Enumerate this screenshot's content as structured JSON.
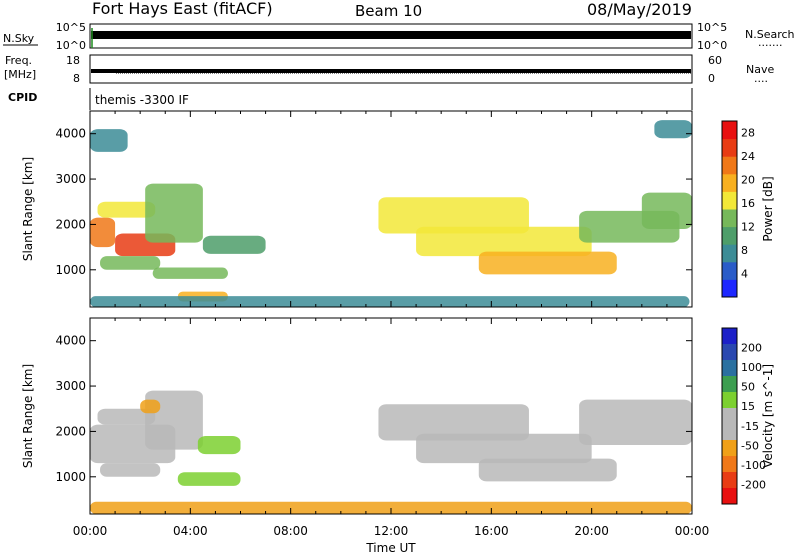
{
  "header": {
    "radar_name": "Fort Hays East (fitACF)",
    "beam": "Beam 10",
    "date": "08/May/2019"
  },
  "status_panels": {
    "nsky": {
      "left_label": "N.Sky",
      "left_ticks": [
        "10^5",
        "10^0"
      ],
      "right_label": "N.Search",
      "right_ticks": [
        "10^5",
        "10^0"
      ]
    },
    "freq": {
      "left_label_line1": "Freq.",
      "left_label_line2": "[MHz]",
      "left_ticks": [
        "18",
        "8"
      ],
      "right_label": "Nave",
      "right_ticks": [
        "60",
        "0"
      ]
    },
    "cpid": {
      "left_label": "CPID",
      "program": "themis -3300 IF"
    }
  },
  "time_axis": {
    "label": "Time UT",
    "ticks": [
      "00:00",
      "04:00",
      "08:00",
      "12:00",
      "16:00",
      "20:00",
      "00:00"
    ]
  },
  "colors": {
    "power_scale": [
      "#1e28ff",
      "#2a5cc8",
      "#3c8c96",
      "#4e9e6a",
      "#76b85a",
      "#f2e838",
      "#f8b020",
      "#f07818",
      "#e83c14",
      "#e81010"
    ],
    "velocity_scale": [
      "#1c20c8",
      "#2a48b0",
      "#2a70a0",
      "#3c9e50",
      "#7cd030",
      "#b8b8b8",
      "#b8b8b8",
      "#f0a018",
      "#f07818",
      "#e83c14",
      "#e81010"
    ]
  },
  "chart_data": [
    {
      "type": "heatmap",
      "name": "power",
      "xlabel": "Time UT",
      "ylabel": "Slant Range [km]",
      "xlim_hours": [
        0,
        24
      ],
      "ylim_km": [
        180,
        4500
      ],
      "y_ticks": [
        1000,
        2000,
        3000,
        4000
      ],
      "colorbar": {
        "label": "Power [dB]",
        "ticks": [
          4,
          8,
          12,
          16,
          20,
          24,
          28
        ],
        "range": [
          0,
          30
        ]
      },
      "regions": [
        {
          "t0": 0.0,
          "t1": 1.0,
          "r0": 1500,
          "r1": 2150,
          "value": 22
        },
        {
          "t0": 1.0,
          "t1": 3.4,
          "r0": 1300,
          "r1": 1800,
          "value": 24
        },
        {
          "t0": 0.3,
          "t1": 2.6,
          "r0": 2150,
          "r1": 2500,
          "value": 16
        },
        {
          "t0": 2.2,
          "t1": 4.5,
          "r0": 1600,
          "r1": 2900,
          "value": 14
        },
        {
          "t0": 0.4,
          "t1": 2.8,
          "r0": 1000,
          "r1": 1300,
          "value": 14
        },
        {
          "t0": 2.5,
          "t1": 5.5,
          "r0": 800,
          "r1": 1050,
          "value": 14
        },
        {
          "t0": 3.5,
          "t1": 5.5,
          "r0": 300,
          "r1": 520,
          "value": 20
        },
        {
          "t0": 4.5,
          "t1": 7.0,
          "r0": 1350,
          "r1": 1750,
          "value": 10
        },
        {
          "t0": 0.0,
          "t1": 23.9,
          "r0": 180,
          "r1": 420,
          "value": 8
        },
        {
          "t0": 11.5,
          "t1": 17.5,
          "r0": 1800,
          "r1": 2600,
          "value": 15
        },
        {
          "t0": 13.0,
          "t1": 20.0,
          "r0": 1300,
          "r1": 1950,
          "value": 16
        },
        {
          "t0": 15.5,
          "t1": 21.0,
          "r0": 900,
          "r1": 1400,
          "value": 18
        },
        {
          "t0": 19.5,
          "t1": 23.5,
          "r0": 1600,
          "r1": 2300,
          "value": 12
        },
        {
          "t0": 22.0,
          "t1": 24.0,
          "r0": 1900,
          "r1": 2700,
          "value": 14
        },
        {
          "t0": 0.0,
          "t1": 1.5,
          "r0": 3600,
          "r1": 4100,
          "value": 8
        },
        {
          "t0": 22.5,
          "t1": 24.0,
          "r0": 3900,
          "r1": 4300,
          "value": 8
        }
      ]
    },
    {
      "type": "heatmap",
      "name": "velocity",
      "xlabel": "Time UT",
      "ylabel": "Slant Range [km]",
      "xlim_hours": [
        0,
        24
      ],
      "ylim_km": [
        180,
        4500
      ],
      "y_ticks": [
        1000,
        2000,
        3000,
        4000
      ],
      "colorbar": {
        "label": "Velocity [m s^-1]",
        "ticks": [
          200,
          100,
          50,
          15,
          -15,
          -50,
          -100,
          -200
        ]
      },
      "regions": [
        {
          "t0": 0.0,
          "t1": 3.4,
          "r0": 1300,
          "r1": 2150,
          "value": 0
        },
        {
          "t0": 0.3,
          "t1": 2.6,
          "r0": 2150,
          "r1": 2500,
          "value": 0
        },
        {
          "t0": 2.2,
          "t1": 4.5,
          "r0": 1600,
          "r1": 2900,
          "value": 0
        },
        {
          "t0": 0.4,
          "t1": 2.8,
          "r0": 1000,
          "r1": 1300,
          "value": 0
        },
        {
          "t0": 4.3,
          "t1": 6.0,
          "r0": 1500,
          "r1": 1900,
          "value": 30
        },
        {
          "t0": 3.5,
          "t1": 6.0,
          "r0": 800,
          "r1": 1100,
          "value": 25
        },
        {
          "t0": 0.0,
          "t1": 24.0,
          "r0": 180,
          "r1": 450,
          "value": -40
        },
        {
          "t0": 11.5,
          "t1": 17.5,
          "r0": 1800,
          "r1": 2600,
          "value": 0
        },
        {
          "t0": 13.0,
          "t1": 20.0,
          "r0": 1300,
          "r1": 1950,
          "value": 0
        },
        {
          "t0": 15.5,
          "t1": 21.0,
          "r0": 900,
          "r1": 1400,
          "value": 0
        },
        {
          "t0": 19.5,
          "t1": 24.0,
          "r0": 1700,
          "r1": 2700,
          "value": 0
        },
        {
          "t0": 2.0,
          "t1": 2.8,
          "r0": 2400,
          "r1": 2700,
          "value": -40
        }
      ]
    }
  ]
}
